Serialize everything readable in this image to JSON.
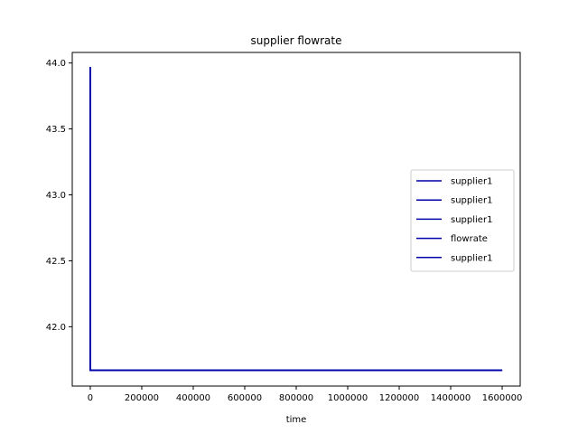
{
  "chart_data": {
    "type": "line",
    "title": "supplier flowrate",
    "xlabel": "time",
    "ylabel": "",
    "xlim": [
      -70000,
      1670000
    ],
    "ylim": [
      41.55,
      44.08
    ],
    "x_ticks": [
      0,
      200000,
      400000,
      600000,
      800000,
      1000000,
      1200000,
      1400000,
      1600000
    ],
    "x_tick_labels": [
      "0",
      "200000",
      "400000",
      "600000",
      "800000",
      "1000000",
      "1200000",
      "1400000",
      "1600000"
    ],
    "y_ticks": [
      42.0,
      42.5,
      43.0,
      43.5,
      44.0
    ],
    "y_tick_labels": [
      "42.0",
      "42.5",
      "43.0",
      "43.5",
      "44.0"
    ],
    "grid": false,
    "legend_position": "center-right",
    "series": [
      {
        "name": "supplier1",
        "color": "#0000aa",
        "x": [
          0,
          0,
          1600000
        ],
        "y": [
          43.97,
          41.67,
          41.67
        ]
      },
      {
        "name": "supplier1",
        "color": "#0000aa",
        "x": [
          0,
          0,
          1600000
        ],
        "y": [
          43.97,
          41.67,
          41.67
        ]
      },
      {
        "name": "supplier1",
        "color": "#0000aa",
        "x": [
          0,
          0,
          1600000
        ],
        "y": [
          43.97,
          41.67,
          41.67
        ]
      },
      {
        "name": "flowrate",
        "color": "#0000aa",
        "x": [
          0,
          0,
          1600000
        ],
        "y": [
          43.97,
          41.67,
          41.67
        ]
      },
      {
        "name": "supplier1",
        "color": "#0000aa",
        "x": [
          0,
          0,
          1600000
        ],
        "y": [
          43.97,
          41.67,
          41.67
        ]
      }
    ]
  }
}
